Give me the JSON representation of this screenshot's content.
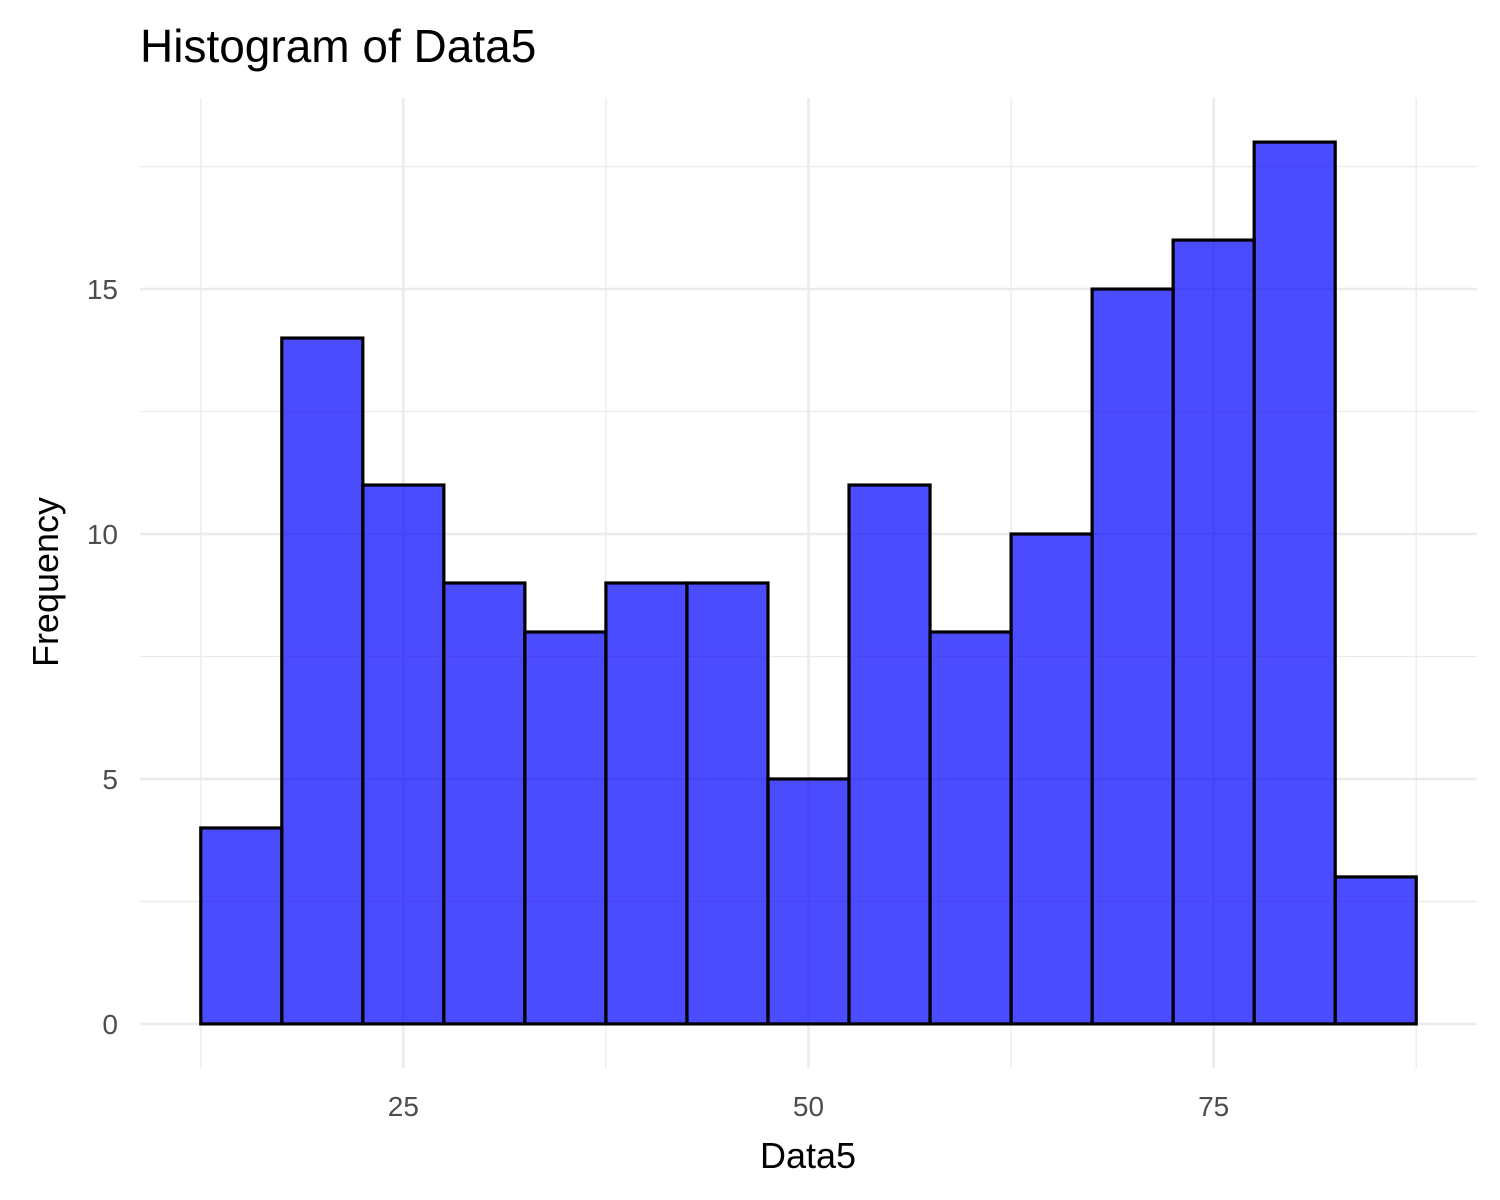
{
  "chart_data": {
    "type": "bar",
    "title": "Histogram of Data5",
    "xlabel": "Data5",
    "ylabel": "Frequency",
    "bin_width": 5,
    "bins": [
      {
        "start": 12.5,
        "end": 17.5,
        "count": 4
      },
      {
        "start": 17.5,
        "end": 22.5,
        "count": 14
      },
      {
        "start": 22.5,
        "end": 27.5,
        "count": 11
      },
      {
        "start": 27.5,
        "end": 32.5,
        "count": 9
      },
      {
        "start": 32.5,
        "end": 37.5,
        "count": 8
      },
      {
        "start": 37.5,
        "end": 42.5,
        "count": 9
      },
      {
        "start": 42.5,
        "end": 47.5,
        "count": 9
      },
      {
        "start": 47.5,
        "end": 52.5,
        "count": 5
      },
      {
        "start": 52.5,
        "end": 57.5,
        "count": 11
      },
      {
        "start": 57.5,
        "end": 62.5,
        "count": 8
      },
      {
        "start": 62.5,
        "end": 67.5,
        "count": 10
      },
      {
        "start": 67.5,
        "end": 72.5,
        "count": 15
      },
      {
        "start": 72.5,
        "end": 77.5,
        "count": 16
      },
      {
        "start": 77.5,
        "end": 82.5,
        "count": 18
      },
      {
        "start": 82.5,
        "end": 87.5,
        "count": 3
      }
    ],
    "xlim": [
      8.75,
      91.25
    ],
    "ylim": [
      -0.9,
      18.9
    ],
    "x_ticks": [
      25,
      50,
      75
    ],
    "x_minor": [
      12.5,
      37.5,
      62.5,
      87.5
    ],
    "y_ticks": [
      0,
      5,
      10,
      15
    ],
    "y_minor": [
      2.5,
      7.5,
      12.5,
      17.5
    ],
    "bar_color": "#0000ff",
    "outline_color": "#000000",
    "grid": true,
    "legend": "none"
  }
}
